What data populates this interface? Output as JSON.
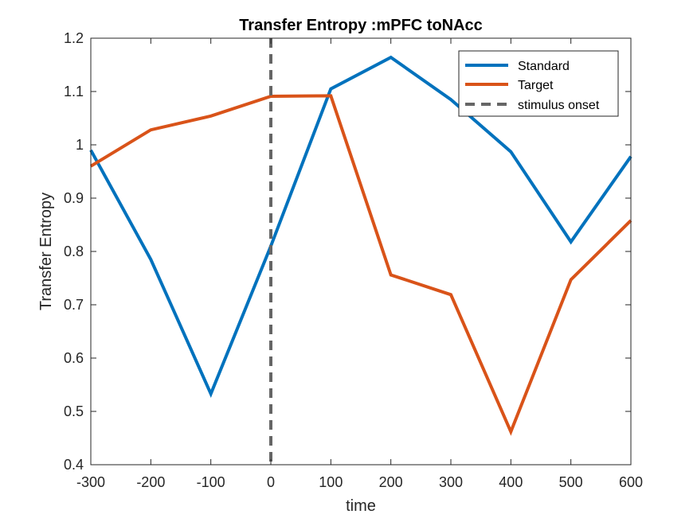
{
  "chart_data": {
    "type": "line",
    "title": "Transfer Entropy :mPFC toNAcc",
    "xlabel": "time",
    "ylabel": "Transfer Entropy",
    "xlim": [
      -300,
      600
    ],
    "ylim": [
      0.4,
      1.2
    ],
    "x_ticks": [
      -300,
      -200,
      -100,
      0,
      100,
      200,
      300,
      400,
      500,
      600
    ],
    "x_tick_labels": [
      "-300",
      "-200",
      "-100",
      "0",
      "100",
      "200",
      "300",
      "400",
      "500",
      "600"
    ],
    "y_ticks": [
      0.4,
      0.5,
      0.6,
      0.7,
      0.8,
      0.9,
      1.0,
      1.1,
      1.2
    ],
    "y_tick_labels": [
      "0.4",
      "0.5",
      "0.6",
      "0.7",
      "0.8",
      "0.9",
      "1",
      "1.1",
      "1.2"
    ],
    "x": [
      -300,
      -200,
      -100,
      0,
      100,
      200,
      300,
      400,
      500,
      600
    ],
    "series": [
      {
        "name": "Standard",
        "color": "#0072BD",
        "values": [
          0.99,
          0.785,
          0.533,
          0.81,
          1.105,
          1.164,
          1.085,
          0.987,
          0.818,
          0.978
        ]
      },
      {
        "name": "Target",
        "color": "#D95319",
        "values": [
          0.96,
          1.028,
          1.054,
          1.091,
          1.092,
          0.756,
          0.719,
          0.462,
          0.747,
          0.858
        ]
      }
    ],
    "annotations": [
      {
        "name": "stimulus onset",
        "type": "vertical-dashed-line",
        "x": 0,
        "color": "#666666"
      }
    ],
    "legend_position": "top-right",
    "grid": false
  }
}
